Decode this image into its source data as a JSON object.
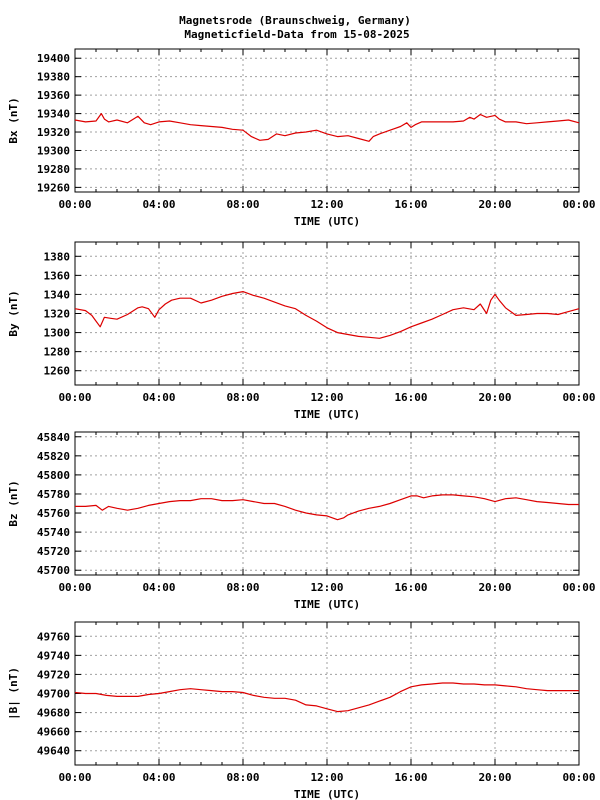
{
  "title_lines": [
    "Magnetsrode (Braunschweig, Germany)",
    "Magneticfield-Data from 15-08-2025"
  ],
  "line_color": "#dd0000",
  "chart_data": [
    {
      "type": "line",
      "ylabel": "Bx (nT)",
      "xlabel": "TIME (UTC)",
      "xlim": [
        0,
        24
      ],
      "xticks": [
        0,
        4,
        8,
        12,
        16,
        20,
        24
      ],
      "xtick_labels": [
        "00:00",
        "04:00",
        "08:00",
        "12:00",
        "16:00",
        "20:00",
        "00:00"
      ],
      "ylim": [
        19255,
        19410
      ],
      "yticks": [
        19260,
        19280,
        19300,
        19320,
        19340,
        19360,
        19380,
        19400
      ],
      "grid": true,
      "series": [
        {
          "x": [
            0,
            0.5,
            1,
            1.25,
            1.4,
            1.6,
            2,
            2.5,
            3,
            3.3,
            3.6,
            4,
            4.5,
            5,
            5.5,
            6,
            6.5,
            7,
            7.5,
            8,
            8.4,
            8.8,
            9.2,
            9.6,
            10,
            10.5,
            11,
            11.5,
            12,
            12.5,
            13,
            13.5,
            14,
            14.2,
            14.5,
            15,
            15.5,
            15.8,
            16,
            16.2,
            16.5,
            17,
            17.5,
            18,
            18.5,
            18.8,
            19,
            19.3,
            19.6,
            20,
            20.2,
            20.5,
            21,
            21.5,
            22,
            22.5,
            23,
            23.5,
            24
          ],
          "y": [
            19333,
            19331,
            19332,
            19340,
            19334,
            19331,
            19333,
            19330,
            19337,
            19330,
            19328,
            19331,
            19332,
            19330,
            19328,
            19327,
            19326,
            19325,
            19323,
            19322,
            19315,
            19311,
            19312,
            19318,
            19316,
            19319,
            19320,
            19322,
            19318,
            19315,
            19316,
            19313,
            19310,
            19315,
            19318,
            19322,
            19326,
            19330,
            19325,
            19328,
            19331,
            19331,
            19331,
            19331,
            19332,
            19336,
            19334,
            19339,
            19336,
            19338,
            19334,
            19331,
            19331,
            19329,
            19330,
            19331,
            19332,
            19333,
            19330
          ]
        }
      ]
    },
    {
      "type": "line",
      "ylabel": "By (nT)",
      "xlabel": "TIME (UTC)",
      "xlim": [
        0,
        24
      ],
      "xticks": [
        0,
        4,
        8,
        12,
        16,
        20,
        24
      ],
      "xtick_labels": [
        "00:00",
        "04:00",
        "08:00",
        "12:00",
        "16:00",
        "20:00",
        "00:00"
      ],
      "ylim": [
        1245,
        1395
      ],
      "yticks": [
        1260,
        1280,
        1300,
        1320,
        1340,
        1360,
        1380
      ],
      "grid": true,
      "series": [
        {
          "x": [
            0,
            0.5,
            0.8,
            1,
            1.2,
            1.4,
            1.7,
            2,
            2.5,
            3,
            3.2,
            3.5,
            3.8,
            4,
            4.3,
            4.6,
            5,
            5.5,
            6,
            6.5,
            7,
            7.5,
            8,
            8.5,
            9,
            9.5,
            10,
            10.5,
            11,
            11.5,
            12,
            12.5,
            13,
            13.5,
            14,
            14.5,
            15,
            15.5,
            16,
            16.5,
            17,
            17.5,
            18,
            18.5,
            19,
            19.3,
            19.6,
            19.8,
            20,
            20.2,
            20.5,
            21,
            21.5,
            22,
            22.5,
            23,
            23.5,
            24
          ],
          "y": [
            1325,
            1323,
            1318,
            1312,
            1306,
            1316,
            1315,
            1314,
            1319,
            1326,
            1327,
            1325,
            1316,
            1324,
            1330,
            1334,
            1336,
            1336,
            1331,
            1334,
            1338,
            1341,
            1343,
            1339,
            1336,
            1332,
            1328,
            1325,
            1318,
            1312,
            1305,
            1300,
            1298,
            1296,
            1295,
            1294,
            1297,
            1301,
            1306,
            1310,
            1314,
            1319,
            1324,
            1326,
            1324,
            1330,
            1320,
            1334,
            1340,
            1334,
            1326,
            1318,
            1319,
            1320,
            1320,
            1319,
            1322,
            1325
          ]
        }
      ]
    },
    {
      "type": "line",
      "ylabel": "Bz (nT)",
      "xlabel": "TIME (UTC)",
      "xlim": [
        0,
        24
      ],
      "xticks": [
        0,
        4,
        8,
        12,
        16,
        20,
        24
      ],
      "xtick_labels": [
        "00:00",
        "04:00",
        "08:00",
        "12:00",
        "16:00",
        "20:00",
        "00:00"
      ],
      "ylim": [
        45695,
        45845
      ],
      "yticks": [
        45700,
        45720,
        45740,
        45760,
        45780,
        45800,
        45820,
        45840
      ],
      "grid": true,
      "series": [
        {
          "x": [
            0,
            0.5,
            1,
            1.3,
            1.6,
            2,
            2.5,
            3,
            3.5,
            4,
            4.5,
            5,
            5.5,
            6,
            6.5,
            7,
            7.5,
            8,
            8.5,
            9,
            9.5,
            10,
            10.5,
            11,
            11.5,
            12,
            12.5,
            12.8,
            13,
            13.5,
            14,
            14.5,
            15,
            15.5,
            16,
            16.3,
            16.6,
            17,
            17.5,
            18,
            18.5,
            19,
            19.5,
            20,
            20.5,
            21,
            21.5,
            22,
            22.5,
            23,
            23.5,
            24
          ],
          "y": [
            45767,
            45767,
            45768,
            45763,
            45767,
            45765,
            45763,
            45765,
            45768,
            45770,
            45772,
            45773,
            45773,
            45775,
            45775,
            45773,
            45773,
            45774,
            45772,
            45770,
            45770,
            45767,
            45763,
            45760,
            45758,
            45757,
            45753,
            45755,
            45758,
            45762,
            45765,
            45767,
            45770,
            45774,
            45778,
            45778,
            45776,
            45778,
            45779,
            45779,
            45778,
            45777,
            45775,
            45772,
            45775,
            45776,
            45774,
            45772,
            45771,
            45770,
            45769,
            45769
          ]
        }
      ]
    },
    {
      "type": "line",
      "ylabel": "|B| (nT)",
      "xlabel": "TIME (UTC)",
      "xlim": [
        0,
        24
      ],
      "xticks": [
        0,
        4,
        8,
        12,
        16,
        20,
        24
      ],
      "xtick_labels": [
        "00:00",
        "04:00",
        "08:00",
        "12:00",
        "16:00",
        "20:00",
        "00:00"
      ],
      "ylim": [
        49625,
        49775
      ],
      "yticks": [
        49640,
        49660,
        49680,
        49700,
        49720,
        49740,
        49760
      ],
      "grid": true,
      "series": [
        {
          "x": [
            0,
            0.5,
            1,
            1.5,
            2,
            2.5,
            3,
            3.5,
            4,
            4.5,
            5,
            5.5,
            6,
            6.5,
            7,
            7.5,
            8,
            8.5,
            9,
            9.5,
            10,
            10.5,
            11,
            11.5,
            12,
            12.5,
            13,
            13.5,
            14,
            14.5,
            15,
            15.5,
            16,
            16.5,
            17,
            17.5,
            18,
            18.5,
            19,
            19.5,
            20,
            20.5,
            21,
            21.5,
            22,
            22.5,
            23,
            23.5,
            24
          ],
          "y": [
            49701,
            49700,
            49700,
            49698,
            49697,
            49697,
            49697,
            49699,
            49700,
            49702,
            49704,
            49705,
            49704,
            49703,
            49702,
            49702,
            49701,
            49698,
            49696,
            49695,
            49695,
            49693,
            49688,
            49687,
            49684,
            49681,
            49682,
            49685,
            49688,
            49692,
            49696,
            49702,
            49707,
            49709,
            49710,
            49711,
            49711,
            49710,
            49710,
            49709,
            49709,
            49708,
            49707,
            49705,
            49704,
            49703,
            49703,
            49703,
            49703
          ]
        }
      ]
    }
  ]
}
